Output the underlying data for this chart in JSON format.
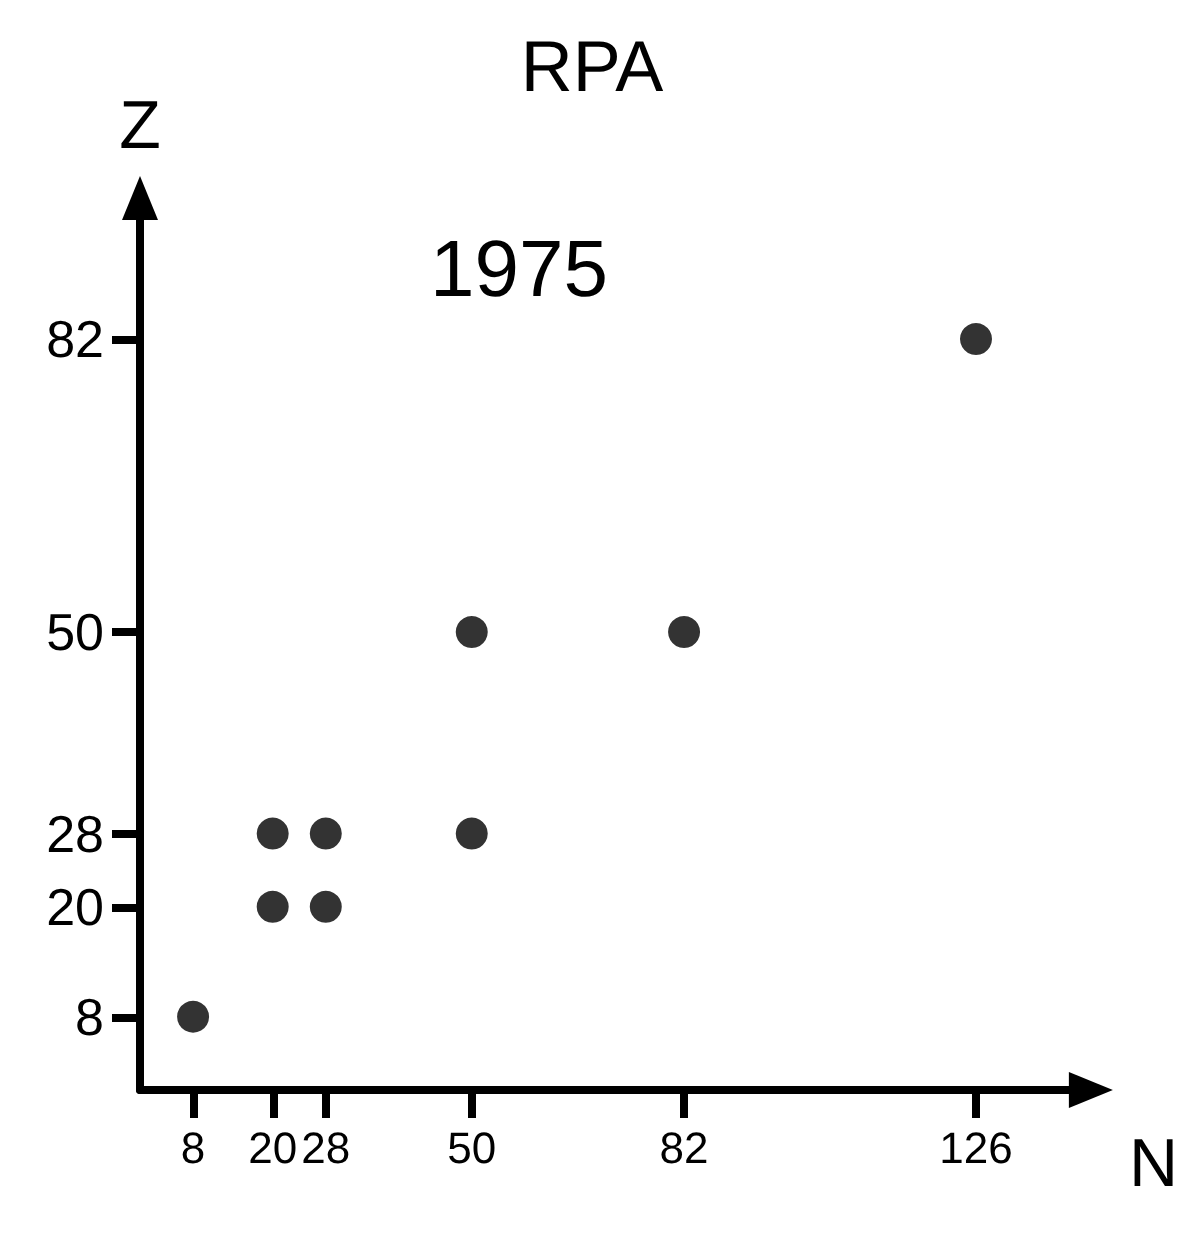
{
  "chart_data": {
    "type": "scatter",
    "title": "RPA",
    "xlabel": "N",
    "ylabel": "Z",
    "annotations": [
      "1975"
    ],
    "x": [
      8,
      20,
      20,
      28,
      28,
      50,
      50,
      82,
      126
    ],
    "series": [
      {
        "color": "#000000",
        "values": [
          8,
          20,
          28,
          20,
          28,
          28,
          50,
          50,
          82
        ]
      }
    ],
    "xlim": [
      0,
      140
    ],
    "xticks": [
      8,
      20,
      28,
      50,
      82,
      126
    ],
    "ylim": [
      0,
      95
    ],
    "yticks": [
      8,
      20,
      28,
      50,
      82
    ],
    "marker": "circle",
    "grid": false
  }
}
